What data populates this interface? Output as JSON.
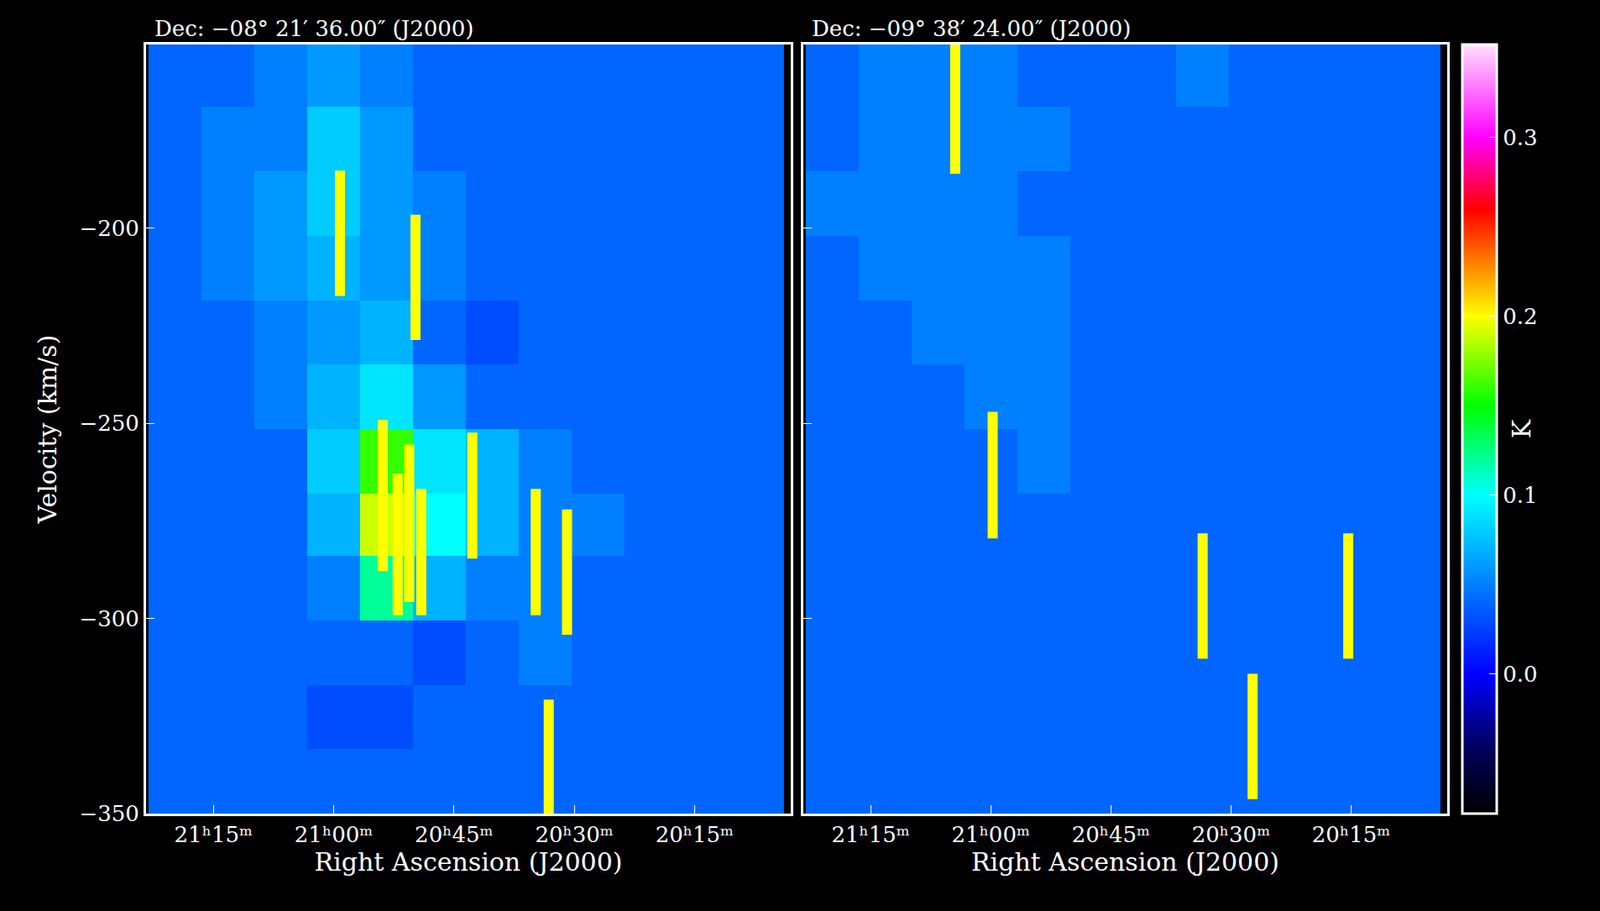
{
  "chart_data": [
    {
      "type": "heatmap",
      "title": "Dec: −08° 21′ 36.00″ (J2000)",
      "x_label": "Right Ascension (J2000)",
      "y_label": "Velocity (km/s)",
      "xlim": [
        21.39,
        20.05
      ],
      "ylim": [
        -350,
        -153
      ],
      "xticks": [
        {
          "value": 21.25,
          "label": "21ʰ15ᵐ"
        },
        {
          "value": 21.0,
          "label": "21ʰ00ᵐ"
        },
        {
          "value": 20.75,
          "label": "20ʰ45ᵐ"
        },
        {
          "value": 20.5,
          "label": "20ʰ30ᵐ"
        },
        {
          "value": 20.25,
          "label": "20ʰ15ᵐ"
        }
      ],
      "yticks": [
        -350,
        -300,
        -250,
        -200
      ],
      "tick_labels": true,
      "x": [
        21.33,
        21.22,
        21.11,
        21.0,
        20.89,
        20.78,
        20.67,
        20.56,
        20.45,
        20.34,
        20.23,
        20.12
      ],
      "y": [
        -161,
        -177,
        -194,
        -210,
        -227,
        -243,
        -260,
        -276,
        -292,
        -309,
        -325,
        -342
      ],
      "cells": [
        [
          0.04,
          0.04,
          0.05,
          0.06,
          0.05,
          0.04,
          0.04,
          0.04,
          0.04,
          0.04,
          0.04,
          0.04
        ],
        [
          0.04,
          0.05,
          0.05,
          0.08,
          0.06,
          0.04,
          0.04,
          0.04,
          0.04,
          0.04,
          0.04,
          0.04
        ],
        [
          0.04,
          0.05,
          0.06,
          0.08,
          0.06,
          0.05,
          0.04,
          0.04,
          0.04,
          0.04,
          0.04,
          0.04
        ],
        [
          0.04,
          0.05,
          0.06,
          0.07,
          0.06,
          0.05,
          0.04,
          0.04,
          0.04,
          0.04,
          0.04,
          0.04
        ],
        [
          0.04,
          0.04,
          0.05,
          0.06,
          0.07,
          0.04,
          0.03,
          0.04,
          0.04,
          0.04,
          0.04,
          0.04
        ],
        [
          0.04,
          0.04,
          0.05,
          0.07,
          0.09,
          0.06,
          0.04,
          0.04,
          0.04,
          0.04,
          0.04,
          0.04
        ],
        [
          0.04,
          0.04,
          0.04,
          0.08,
          0.16,
          0.09,
          0.07,
          0.05,
          0.04,
          0.04,
          0.04,
          0.04
        ],
        [
          0.04,
          0.04,
          0.04,
          0.07,
          0.19,
          0.1,
          0.07,
          0.05,
          0.05,
          0.04,
          0.04,
          0.04
        ],
        [
          0.04,
          0.04,
          0.04,
          0.05,
          0.12,
          0.07,
          0.05,
          0.05,
          0.04,
          0.04,
          0.04,
          0.04
        ],
        [
          0.04,
          0.04,
          0.04,
          0.04,
          0.04,
          0.03,
          0.04,
          0.05,
          0.04,
          0.04,
          0.04,
          0.04
        ],
        [
          0.04,
          0.04,
          0.04,
          0.03,
          0.03,
          0.04,
          0.04,
          0.04,
          0.04,
          0.04,
          0.04,
          0.04
        ],
        [
          0.04,
          0.04,
          0.04,
          0.04,
          0.04,
          0.04,
          0.04,
          0.04,
          0.04,
          0.04,
          0.04,
          0.04
        ]
      ],
      "zlim": [
        -0.078,
        0.352
      ],
      "segments": {
        "color": "#ffff00",
        "x": [
          20.987,
          20.83,
          20.898,
          20.867,
          20.843,
          20.818,
          20.712,
          20.58,
          20.515,
          20.553
        ],
        "y0": [
          -185.3,
          -196.6,
          -249.2,
          -262.9,
          -255.5,
          -266.8,
          -252.4,
          -266.8,
          -272.1,
          -320.8
        ],
        "y1": [
          -217.4,
          -228.7,
          -287.9,
          -299.2,
          -295.8,
          -299.2,
          -284.7,
          -299.2,
          -304.2,
          -352.9
        ]
      }
    },
    {
      "type": "heatmap",
      "title": "Dec: −09° 38′ 24.00″ (J2000)",
      "x_label": "Right Ascension (J2000)",
      "xlim": [
        21.39,
        20.05
      ],
      "ylim": [
        -350,
        -153
      ],
      "xticks": [
        {
          "value": 21.25,
          "label": "21ʰ15ᵐ"
        },
        {
          "value": 21.0,
          "label": "21ʰ00ᵐ"
        },
        {
          "value": 20.75,
          "label": "20ʰ45ᵐ"
        },
        {
          "value": 20.5,
          "label": "20ʰ30ᵐ"
        },
        {
          "value": 20.25,
          "label": "20ʰ15ᵐ"
        }
      ],
      "yticks": [
        -350,
        -300,
        -250,
        -200
      ],
      "tick_labels": "x",
      "x": [
        21.33,
        21.22,
        21.11,
        21.0,
        20.89,
        20.78,
        20.67,
        20.56,
        20.45,
        20.34,
        20.23,
        20.12
      ],
      "y": [
        -161,
        -177,
        -194,
        -210,
        -227,
        -243,
        -260,
        -276,
        -292,
        -309,
        -325,
        -342
      ],
      "cells": [
        [
          0.04,
          0.05,
          0.05,
          0.05,
          0.04,
          0.04,
          0.04,
          0.05,
          0.04,
          0.04,
          0.04,
          0.04
        ],
        [
          0.04,
          0.05,
          0.05,
          0.05,
          0.05,
          0.04,
          0.04,
          0.04,
          0.04,
          0.04,
          0.04,
          0.04
        ],
        [
          0.05,
          0.05,
          0.05,
          0.05,
          0.04,
          0.04,
          0.04,
          0.04,
          0.04,
          0.04,
          0.04,
          0.04
        ],
        [
          0.04,
          0.05,
          0.05,
          0.05,
          0.05,
          0.04,
          0.04,
          0.04,
          0.04,
          0.04,
          0.04,
          0.04
        ],
        [
          0.04,
          0.04,
          0.05,
          0.05,
          0.05,
          0.04,
          0.04,
          0.04,
          0.04,
          0.04,
          0.04,
          0.04
        ],
        [
          0.04,
          0.04,
          0.04,
          0.05,
          0.05,
          0.04,
          0.04,
          0.04,
          0.04,
          0.04,
          0.04,
          0.04
        ],
        [
          0.04,
          0.04,
          0.04,
          0.04,
          0.05,
          0.04,
          0.04,
          0.04,
          0.04,
          0.04,
          0.04,
          0.04
        ],
        [
          0.04,
          0.04,
          0.04,
          0.04,
          0.04,
          0.04,
          0.04,
          0.04,
          0.04,
          0.04,
          0.04,
          0.04
        ],
        [
          0.04,
          0.04,
          0.04,
          0.04,
          0.04,
          0.04,
          0.04,
          0.04,
          0.04,
          0.04,
          0.04,
          0.04
        ],
        [
          0.04,
          0.04,
          0.04,
          0.04,
          0.04,
          0.04,
          0.04,
          0.04,
          0.04,
          0.04,
          0.04,
          0.04
        ],
        [
          0.04,
          0.04,
          0.04,
          0.04,
          0.04,
          0.04,
          0.04,
          0.04,
          0.04,
          0.04,
          0.04,
          0.04
        ],
        [
          0.04,
          0.04,
          0.04,
          0.04,
          0.04,
          0.04,
          0.04,
          0.04,
          0.04,
          0.04,
          0.04,
          0.04
        ]
      ],
      "zlim": [
        -0.078,
        0.352
      ],
      "colorbar": {
        "title": "K",
        "ticks": [
          {
            "value": 0,
            "label": "0.0"
          },
          0.1,
          0.2,
          0.3
        ]
      },
      "segments": {
        "color": "#ffff00",
        "x": [
          21.074,
          20.996,
          20.559,
          20.455,
          20.256
        ],
        "y0": [
          -150,
          -247.1,
          -278.2,
          -314.2,
          -278.2
        ],
        "y1": [
          -186.1,
          -279.5,
          -310.3,
          -346.3,
          -310.3
        ]
      }
    }
  ]
}
